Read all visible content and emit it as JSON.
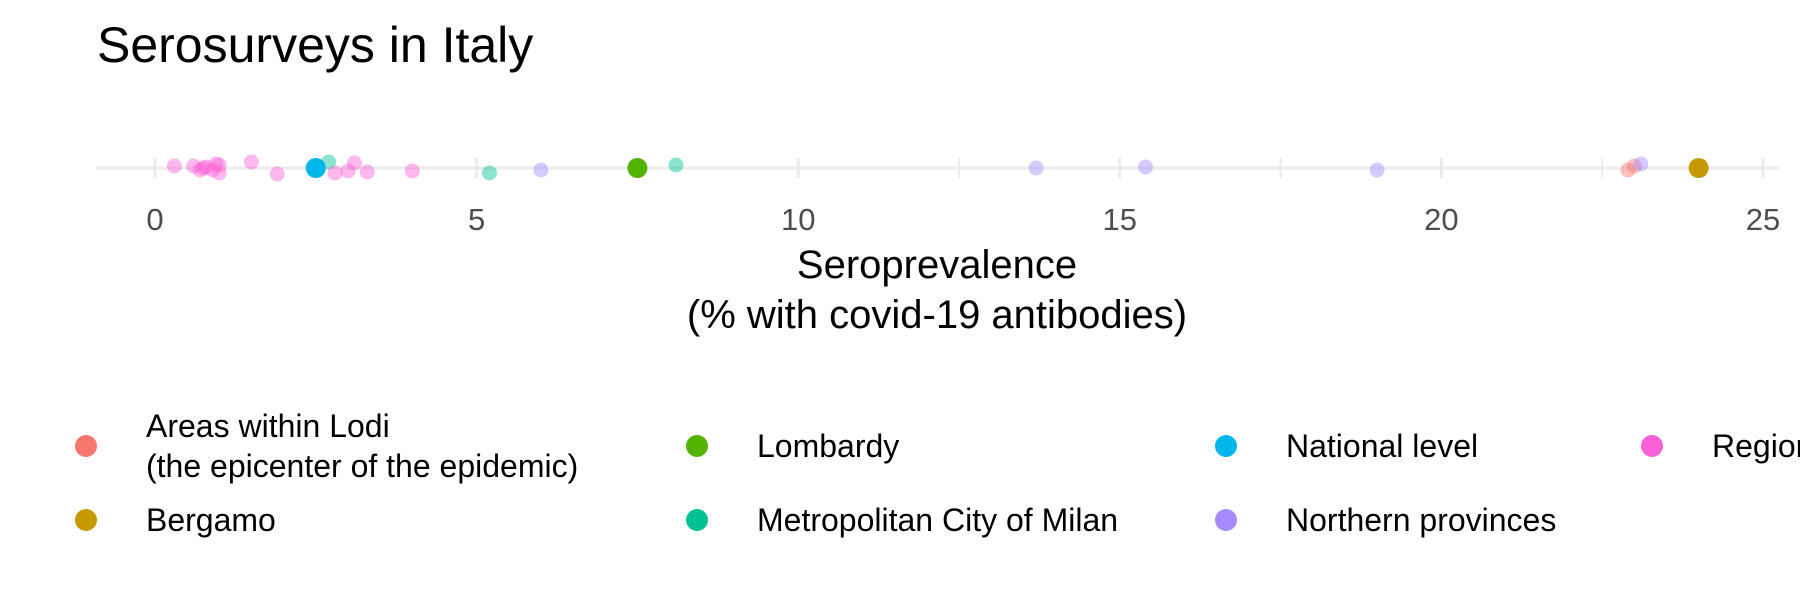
{
  "chart_data": {
    "type": "scatter",
    "title": "Serosurveys in Italy",
    "xlabel_lines": [
      "Seroprevalence",
      "(% with covid-19 antibodies)"
    ],
    "ylabel": "",
    "xlim": [
      0,
      25
    ],
    "x_ticks": [
      0,
      5,
      10,
      15,
      20,
      25
    ],
    "grid": true,
    "legend_position": "bottom",
    "series": [
      {
        "name": "Areas within Lodi\n(the epicenter of the epidemic)",
        "color": "#F8766D",
        "x": [
          23.0,
          22.9
        ]
      },
      {
        "name": "Bergamo",
        "color": "#C49A00",
        "x": [
          24.0
        ]
      },
      {
        "name": "Lombardy",
        "color": "#53B400",
        "x": [
          7.5
        ]
      },
      {
        "name": "Metropolitan City of Milan",
        "color": "#00C094",
        "x": [
          5.2,
          8.1,
          2.7
        ]
      },
      {
        "name": "National level",
        "color": "#00B6EB",
        "x": [
          2.5
        ]
      },
      {
        "name": "Northern provinces",
        "color": "#A58AFF",
        "x": [
          6.0,
          13.7,
          15.4,
          19.0,
          23.1
        ]
      },
      {
        "name": "Regions",
        "color": "#FB61D7",
        "x": [
          0.3,
          0.6,
          0.7,
          0.75,
          0.8,
          0.9,
          0.95,
          1.0,
          1.0,
          1.5,
          1.9,
          2.8,
          3.0,
          3.1,
          3.3,
          4.0
        ]
      }
    ]
  }
}
